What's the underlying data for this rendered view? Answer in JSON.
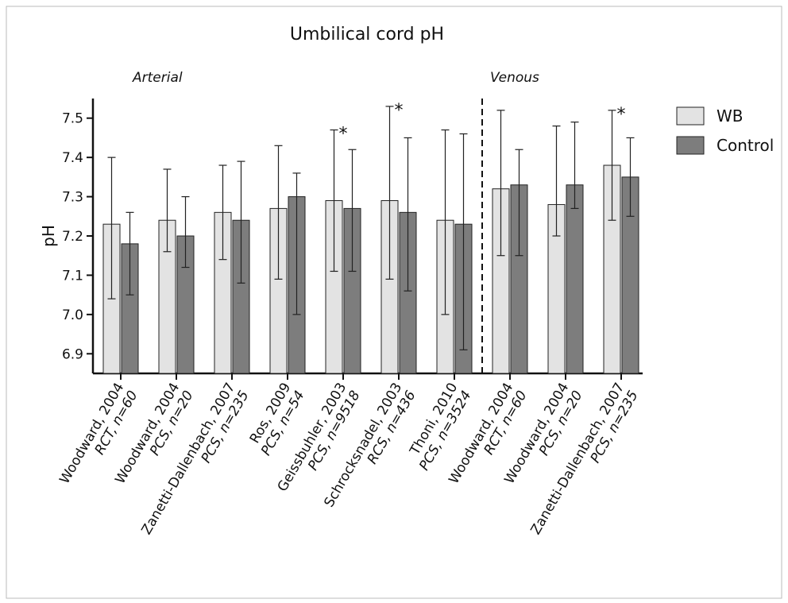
{
  "chart_data": {
    "type": "bar",
    "title": "Umbilical cord pH",
    "y_label": "pH",
    "categories": [
      [
        "Woodward, 2004",
        "RCT, n=60"
      ],
      [
        "Woodward, 2004",
        "PCS, n=20"
      ],
      [
        "Zanetti-Dallenbach, 2007",
        "PCS, n=235"
      ],
      [
        "Ros, 2009",
        "PCS, n=54"
      ],
      [
        "Geissbuhler, 2003",
        "PCS, n=9518"
      ],
      [
        "Schrocksnadel, 2003",
        "RCS, n=436"
      ],
      [
        "Thoni, 2010",
        "PCS, n=3524"
      ],
      [
        "Woodward, 2004",
        "RCT, n=60"
      ],
      [
        "Woodward, 2004",
        "PCS, n=20"
      ],
      [
        "Zanetti-Dallenbach, 2007",
        "PCS, n=235"
      ]
    ],
    "series": [
      {
        "name": "WB",
        "color": "#e3e3e3",
        "values": [
          7.23,
          7.24,
          7.26,
          7.27,
          7.29,
          7.29,
          7.24,
          7.32,
          7.28,
          7.38
        ],
        "lower": [
          7.04,
          7.16,
          7.14,
          7.09,
          7.11,
          7.09,
          7.0,
          7.15,
          7.2,
          7.24
        ],
        "upper": [
          7.4,
          7.37,
          7.38,
          7.43,
          7.47,
          7.53,
          7.47,
          7.52,
          7.48,
          7.52
        ]
      },
      {
        "name": "Control",
        "color": "#7d7d7d",
        "values": [
          7.18,
          7.2,
          7.24,
          7.3,
          7.27,
          7.26,
          7.23,
          7.33,
          7.33,
          7.35
        ],
        "lower": [
          7.05,
          7.12,
          7.08,
          7.0,
          7.11,
          7.06,
          6.91,
          7.15,
          7.27,
          7.25
        ],
        "upper": [
          7.26,
          7.3,
          7.39,
          7.36,
          7.42,
          7.45,
          7.46,
          7.42,
          7.49,
          7.45
        ]
      }
    ],
    "sections": [
      {
        "label": "Arterial",
        "start": 0
      },
      {
        "label": "Venous",
        "start": 7
      }
    ],
    "annotations": [
      {
        "category": 4,
        "text": "*"
      },
      {
        "category": 5,
        "text": "*"
      },
      {
        "category": 9,
        "text": "*"
      }
    ],
    "ylim": [
      6.85,
      7.55
    ],
    "yticks": [
      6.9,
      {
        "value": 7,
        "label": "7.0"
      },
      7.1,
      7.2,
      7.3,
      7.4,
      7.5
    ],
    "legend": "right"
  }
}
